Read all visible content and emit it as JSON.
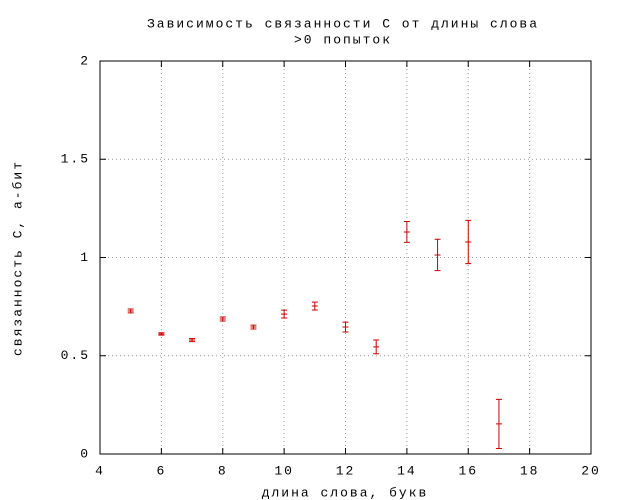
{
  "chart_data": {
    "type": "errorbar",
    "title": "Зависимость связанности С от длины слова",
    "subtitle": ">0 попыток",
    "x_label": "длина слова, букв",
    "y_label": "связанность С, а-бит",
    "x": [
      5,
      6,
      7,
      8,
      9,
      10,
      11,
      12,
      13,
      14,
      15,
      16,
      17
    ],
    "values": [
      0.728,
      0.611,
      0.58,
      0.687,
      0.646,
      0.712,
      0.753,
      0.646,
      0.545,
      1.13,
      1.013,
      1.079,
      0.153
    ],
    "errors": [
      0.01,
      0.006,
      0.008,
      0.01,
      0.01,
      0.02,
      0.02,
      0.025,
      0.035,
      0.053,
      0.08,
      0.11,
      0.125
    ],
    "color": "#cc0000",
    "xlim": [
      4,
      20
    ],
    "ylim": [
      0,
      2
    ],
    "xticks": [
      4,
      6,
      8,
      10,
      12,
      14,
      16,
      18,
      20
    ],
    "yticks": [
      0,
      0.5,
      1,
      1.5,
      2
    ],
    "grid": true
  }
}
